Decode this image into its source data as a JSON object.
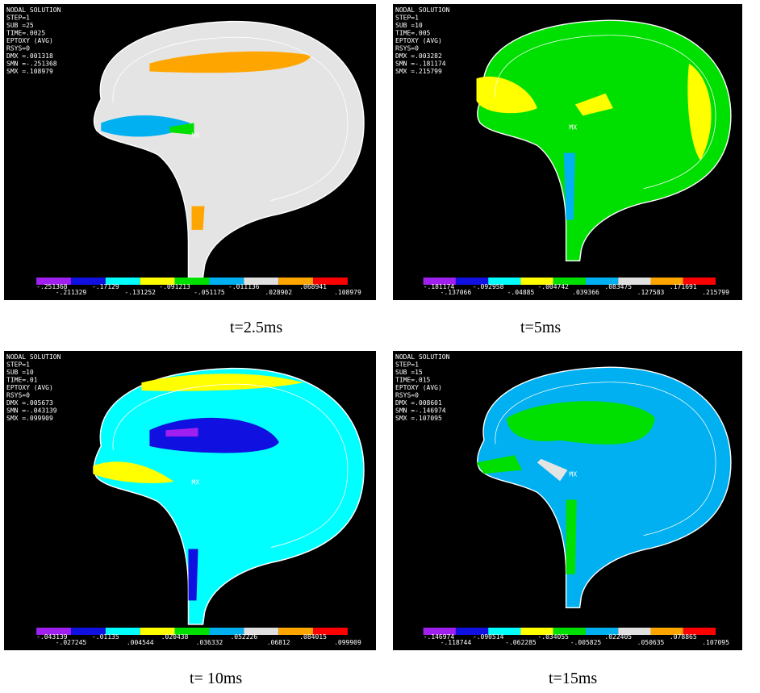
{
  "panels": [
    {
      "caption": "t=2.5ms",
      "header": [
        "NODAL SOLUTION",
        "STEP=1",
        "SUB =25",
        "TIME=.0025",
        "EPTOXY    (AVG)",
        "RSYS=0",
        "DMX =.001318",
        "SMN =-.251368",
        "SMX =.108979"
      ],
      "legend": [
        "-.251368",
        "-.211329",
        "-.17129",
        "-.131252",
        "-.091213",
        "-.051175",
        "-.011136",
        ".028902",
        ".068941",
        ".108979"
      ],
      "markers": [
        "MX"
      ]
    },
    {
      "caption": "t=5ms",
      "header": [
        "NODAL SOLUTION",
        "STEP=1",
        "SUB =10",
        "TIME=.005",
        "EPTOXY    (AVG)",
        "RSYS=0",
        "DMX =.003282",
        "SMN =-.181174",
        "SMX =.215799"
      ],
      "legend": [
        "-.181174",
        "-.137066",
        "-.092958",
        "-.04885",
        "-.004742",
        ".039366",
        ".083475",
        ".127583",
        ".171691",
        ".215799"
      ],
      "markers": [
        "MX"
      ]
    },
    {
      "caption": "t= 10ms",
      "header": [
        "NODAL SOLUTION",
        "STEP=1",
        "SUB =10",
        "TIME=.01",
        "EPTOXY    (AVG)",
        "RSYS=0",
        "DMX =.005673",
        "SMN =-.043139",
        "SMX =.099909"
      ],
      "legend": [
        "-.043139",
        "-.027245",
        "-.01135",
        ".004544",
        ".020438",
        ".036332",
        ".052226",
        ".06812",
        ".084015",
        ".099909"
      ],
      "markers": [
        "MX"
      ]
    },
    {
      "caption": "t=15ms",
      "header": [
        "NODAL SOLUTION",
        "STEP=1",
        "SUB =15",
        "TIME=.015",
        "EPTOXY    (AVG)",
        "RSYS=0",
        "DMX =.008601",
        "SMN =-.146974",
        "SMX =.107095"
      ],
      "legend": [
        "-.146974",
        "-.118744",
        "-.090514",
        "-.062285",
        "-.034055",
        "-.005825",
        ".022405",
        ".050635",
        ".078865",
        ".107095"
      ],
      "markers": [
        "MX"
      ]
    }
  ]
}
